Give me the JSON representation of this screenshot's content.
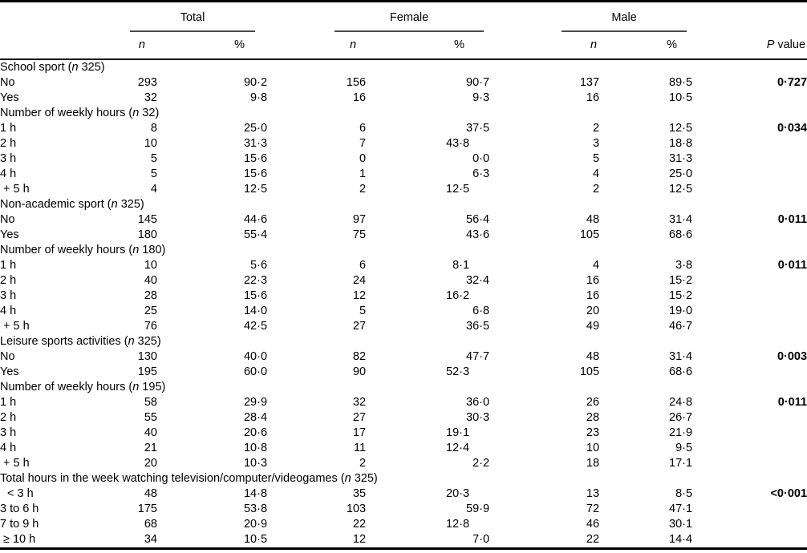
{
  "colors": {
    "text": "#000000",
    "rules": "#000000",
    "background": "#ffffff"
  },
  "table": {
    "n_symbol": "n",
    "pct_symbol": "%",
    "p_header": {
      "italic": "P",
      "rest": "value"
    },
    "groups": [
      {
        "label": "Total"
      },
      {
        "label": "Female"
      },
      {
        "label": "Male"
      }
    ],
    "sections": [
      {
        "title": "School sport",
        "n_count": "325",
        "rows": [
          {
            "label": "No",
            "total_n": "293",
            "total_pct": "90·2",
            "female_n": "156",
            "female_pct": "90·7",
            "male_n": "137",
            "male_pct": "89·5",
            "p": "0·727"
          },
          {
            "label": "Yes",
            "total_n": "32",
            "total_pct": "9·8",
            "female_n": "16",
            "female_pct": "9·3",
            "male_n": "16",
            "male_pct": "10·5",
            "p": ""
          }
        ]
      },
      {
        "title": "Number of weekly hours",
        "n_count": "32",
        "rows": [
          {
            "label": "1 h",
            "total_n": "8",
            "total_pct": "25·0",
            "female_n": "6",
            "female_pct": "37·5",
            "male_n": "2",
            "male_pct": "12·5",
            "p": "0·034"
          },
          {
            "label": "2 h",
            "total_n": "10",
            "total_pct": "31·3",
            "female_n": "7",
            "female_pct": "43·8",
            "fp_shift": true,
            "male_n": "3",
            "male_pct": "18·8",
            "p": ""
          },
          {
            "label": "3 h",
            "total_n": "5",
            "total_pct": "15·6",
            "female_n": "0",
            "female_pct": "0·0",
            "male_n": "5",
            "male_pct": "31·3",
            "p": ""
          },
          {
            "label": "4 h",
            "total_n": "5",
            "total_pct": "15·6",
            "female_n": "1",
            "female_pct": "6·3",
            "male_n": "4",
            "male_pct": "25·0",
            "p": ""
          },
          {
            "label": "+ 5 h",
            "total_n": "4",
            "total_pct": "12·5",
            "female_n": "2",
            "female_pct": "12·5",
            "fp_shift": true,
            "male_n": "2",
            "male_pct": "12·5",
            "p": ""
          }
        ]
      },
      {
        "title": "Non-academic sport",
        "n_count": "325",
        "rows": [
          {
            "label": "No",
            "total_n": "145",
            "total_pct": "44·6",
            "female_n": "97",
            "female_pct": "56·4",
            "male_n": "48",
            "male_pct": "31·4",
            "p": "0·011"
          },
          {
            "label": "Yes",
            "total_n": "180",
            "total_pct": "55·4",
            "female_n": "75",
            "female_pct": "43·6",
            "male_n": "105",
            "male_pct": "68·6",
            "p": ""
          }
        ]
      },
      {
        "title": "Number of weekly hours",
        "n_count": "180",
        "rows": [
          {
            "label": "1 h",
            "total_n": "10",
            "total_pct": "5·6",
            "female_n": "6",
            "female_pct": "8·1",
            "fp_shift": true,
            "male_n": "4",
            "male_pct": "3·8",
            "p": "0·011"
          },
          {
            "label": "2 h",
            "total_n": "40",
            "total_pct": "22·3",
            "female_n": "24",
            "female_pct": "32·4",
            "male_n": "16",
            "male_pct": "15·2",
            "p": ""
          },
          {
            "label": "3 h",
            "total_n": "28",
            "total_pct": "15·6",
            "female_n": "12",
            "female_pct": "16·2",
            "fp_shift": true,
            "male_n": "16",
            "male_pct": "15·2",
            "p": ""
          },
          {
            "label": "4 h",
            "total_n": "25",
            "total_pct": "14·0",
            "female_n": "5",
            "female_pct": "6·8",
            "male_n": "20",
            "male_pct": "19·0",
            "p": ""
          },
          {
            "label": "+ 5 h",
            "total_n": "76",
            "total_pct": "42·5",
            "female_n": "27",
            "female_pct": "36·5",
            "male_n": "49",
            "male_pct": "46·7",
            "p": ""
          }
        ]
      },
      {
        "title": "Leisure sports activities",
        "n_count": "325",
        "rows": [
          {
            "label": "No",
            "total_n": "130",
            "total_pct": "40·0",
            "female_n": "82",
            "female_pct": "47·7",
            "male_n": "48",
            "male_pct": "31·4",
            "p": "0·003"
          },
          {
            "label": "Yes",
            "total_n": "195",
            "total_pct": "60·0",
            "female_n": "90",
            "female_pct": "52·3",
            "fp_shift": true,
            "male_n": "105",
            "male_pct": "68·6",
            "p": ""
          }
        ]
      },
      {
        "title": "Number of weekly hours",
        "n_count": "195",
        "rows": [
          {
            "label": "1 h",
            "total_n": "58",
            "total_pct": "29·9",
            "female_n": "32",
            "female_pct": "36·0",
            "male_n": "26",
            "male_pct": "24·8",
            "p": "0·011"
          },
          {
            "label": "2 h",
            "total_n": "55",
            "total_pct": "28·4",
            "female_n": "27",
            "female_pct": "30·3",
            "male_n": "28",
            "male_pct": "26·7",
            "p": ""
          },
          {
            "label": "3 h",
            "total_n": "40",
            "total_pct": "20·6",
            "female_n": "17",
            "female_pct": "19·1",
            "fp_shift": true,
            "male_n": "23",
            "male_pct": "21·9",
            "p": ""
          },
          {
            "label": "4 h",
            "total_n": "21",
            "total_pct": "10·8",
            "female_n": "11",
            "female_pct": "12·4",
            "fp_shift": true,
            "male_n": "10",
            "male_pct": "9·5",
            "p": ""
          },
          {
            "label": "+ 5 h",
            "total_n": "20",
            "total_pct": "10·3",
            "female_n": "2",
            "female_pct": "2·2",
            "male_n": "18",
            "male_pct": "17·1",
            "p": ""
          }
        ]
      },
      {
        "title": "Total hours in the week watching television/computer/videogames",
        "n_count": "325",
        "rows": [
          {
            "label": "< 3 h",
            "total_n": "48",
            "total_pct": "14·8",
            "female_n": "35",
            "female_pct": "20·3",
            "fp_shift": true,
            "male_n": "13",
            "male_pct": "8·5",
            "p": "<0·001"
          },
          {
            "label": "3 to 6 h",
            "total_n": "175",
            "total_pct": "53·8",
            "female_n": "103",
            "female_pct": "59·9",
            "male_n": "72",
            "male_pct": "47·1",
            "p": ""
          },
          {
            "label": "7 to 9 h",
            "total_n": "68",
            "total_pct": "20·9",
            "female_n": "22",
            "female_pct": "12·8",
            "fp_shift": true,
            "male_n": "46",
            "male_pct": "30·1",
            "p": ""
          },
          {
            "label": "≥ 10 h",
            "total_n": "34",
            "total_pct": "10·5",
            "female_n": "12",
            "female_pct": "7·0",
            "male_n": "22",
            "male_pct": "14·4",
            "p": ""
          }
        ]
      }
    ]
  }
}
